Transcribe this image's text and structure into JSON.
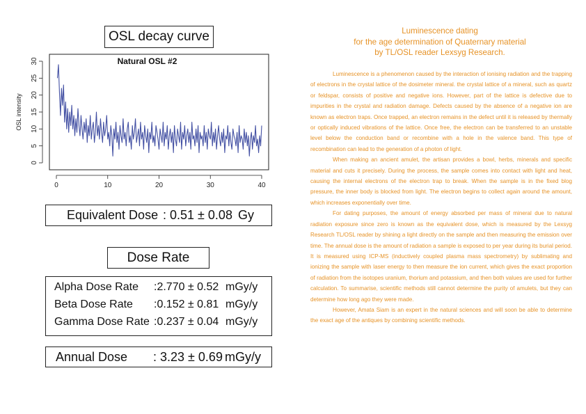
{
  "osl_title": "OSL decay curve",
  "chart_data": {
    "type": "line",
    "title": "Natural OSL #2",
    "xlabel": "",
    "ylabel": "OSL intensity",
    "xlim": [
      0,
      40
    ],
    "ylim": [
      0,
      30
    ],
    "x_ticks": [
      "0",
      "10",
      "20",
      "30",
      "40"
    ],
    "y_ticks": [
      "0",
      "5",
      "10",
      "15",
      "20",
      "25",
      "30"
    ],
    "grid": false,
    "color": "#4350a3",
    "series": [
      {
        "x": [
          0.2,
          0.4,
          0.6,
          0.8,
          1.0,
          1.2,
          1.4,
          1.6,
          1.8,
          2.0,
          2.2,
          2.4,
          2.6,
          2.8,
          3.0,
          3.2,
          3.4,
          3.6,
          3.8,
          4.0,
          4.2,
          4.4,
          4.6,
          4.8,
          5.0,
          5.2,
          5.4,
          5.6,
          5.8,
          6.0,
          6.2,
          6.4,
          6.6,
          6.8,
          7.0,
          7.2,
          7.4,
          7.6,
          7.8,
          8.0,
          8.2,
          8.4,
          8.6,
          8.8,
          9.0,
          9.2,
          9.4,
          9.6,
          9.8,
          10.0,
          10.2,
          10.4,
          10.6,
          10.8,
          11.0,
          11.2,
          11.4,
          11.6,
          11.8,
          12.0,
          12.2,
          12.4,
          12.6,
          12.8,
          13.0,
          13.2,
          13.4,
          13.6,
          13.8,
          14.0,
          14.2,
          14.4,
          14.6,
          14.8,
          15.0,
          15.2,
          15.4,
          15.6,
          15.8,
          16.0,
          16.2,
          16.4,
          16.6,
          16.8,
          17.0,
          17.2,
          17.4,
          17.6,
          17.8,
          18.0,
          18.2,
          18.4,
          18.6,
          18.8,
          19.0,
          19.2,
          19.4,
          19.6,
          19.8,
          20.0,
          20.2,
          20.4,
          20.6,
          20.8,
          21.0,
          21.2,
          21.4,
          21.6,
          21.8,
          22.0,
          22.2,
          22.4,
          22.6,
          22.8,
          23.0,
          23.2,
          23.4,
          23.6,
          23.8,
          24.0,
          24.2,
          24.4,
          24.6,
          24.8,
          25.0,
          25.2,
          25.4,
          25.6,
          25.8,
          26.0,
          26.2,
          26.4,
          26.6,
          26.8,
          27.0,
          27.2,
          27.4,
          27.6,
          27.8,
          28.0,
          28.2,
          28.4,
          28.6,
          28.8,
          29.0,
          29.2,
          29.4,
          29.6,
          29.8,
          30.0,
          30.2,
          30.4,
          30.6,
          30.8,
          31.0,
          31.2,
          31.4,
          31.6,
          31.8,
          32.0,
          32.2,
          32.4,
          32.6,
          32.8,
          33.0,
          33.2,
          33.4,
          33.6,
          33.8,
          34.0,
          34.2,
          34.4,
          34.6,
          34.8,
          35.0,
          35.2,
          35.4,
          35.6,
          35.8,
          36.0,
          36.2,
          36.4,
          36.6,
          36.8,
          37.0,
          37.2,
          37.4,
          37.6,
          37.8,
          38.0,
          38.2,
          38.4,
          38.6,
          38.8,
          39.0,
          39.2,
          39.4,
          39.6,
          39.8,
          40.0
        ],
        "y": [
          25,
          29,
          21,
          14,
          22,
          17,
          23,
          12,
          18,
          10,
          16,
          9,
          15,
          11,
          17,
          10,
          14,
          8,
          13,
          9,
          16,
          11,
          8,
          14,
          10,
          7,
          12,
          9,
          13,
          6,
          11,
          8,
          14,
          7,
          10,
          12,
          6,
          9,
          15,
          8,
          11,
          7,
          13,
          9,
          6,
          12,
          8,
          10,
          14,
          7,
          9,
          5,
          11,
          8,
          2,
          10,
          7,
          12,
          6,
          9,
          4,
          11,
          8,
          6,
          13,
          7,
          9,
          5,
          10,
          12,
          6,
          8,
          4,
          11,
          7,
          9,
          13,
          6,
          8,
          10,
          5,
          12,
          7,
          9,
          4,
          11,
          8,
          6,
          10,
          3,
          9,
          7,
          12,
          6,
          8,
          5,
          11,
          9,
          7,
          4,
          10,
          8,
          6,
          12,
          5,
          9,
          7,
          11,
          4,
          8,
          10,
          6,
          9,
          3,
          11,
          7,
          5,
          10,
          8,
          6,
          12,
          4,
          9,
          7,
          11,
          5,
          8,
          10,
          6,
          9,
          4,
          12,
          7,
          8,
          5,
          10,
          6,
          11,
          3,
          9,
          7,
          8,
          5,
          11,
          6,
          9,
          4,
          10,
          8,
          7,
          12,
          5,
          9,
          6,
          10,
          4,
          8,
          11,
          7,
          5,
          9,
          6,
          10,
          3,
          8,
          7,
          11,
          5,
          9,
          6,
          4,
          10,
          8,
          7,
          5,
          9,
          3,
          11,
          6,
          8,
          7,
          4,
          10,
          6,
          9,
          5,
          8,
          2,
          7,
          9,
          4,
          8,
          6,
          11,
          5,
          7,
          3,
          8,
          5,
          11
        ]
      }
    ]
  },
  "equivalent_dose": {
    "label": "Equivalent Dose",
    "value": ": 0.51 ± 0.08",
    "unit": "Gy"
  },
  "dose_rate_title": "Dose Rate",
  "dose_rates": [
    {
      "label": "Alpha Dose Rate",
      "value": ":2.770 ± 0.52",
      "unit": "mGy/y"
    },
    {
      "label": "Beta Dose Rate",
      "value": ":0.152 ± 0.81",
      "unit": "mGy/y"
    },
    {
      "label": "Gamma Dose Rate",
      "value": ":0.237 ± 0.04",
      "unit": "mGy/y"
    }
  ],
  "annual_dose": {
    "label": "Annual Dose",
    "value": ": 3.23 ± 0.69",
    "unit": "mGy/y"
  },
  "article": {
    "title_lines": [
      "Luminescence dating",
      "for the age determination of Quaternary material",
      "by TL/OSL reader Lexsyg Research."
    ],
    "paragraphs": [
      "Luminescence is a phenomenon caused by the interaction of ionising radiation and the trapping of electrons in the crystal lattice of the dosimeter mineral. the crystal lattice of a mineral, such as quartz or feldspar, consists of positive and negative ions. However, part of the lattice is defective due to impurities in the crystal and radiation damage. Defects caused by the absence of a negative ion are known as electron traps. Once trapped, an electron remains in the defect until it is released by thermally or optically induced vibrations of the lattice. Once free, the electron can be transferred to an unstable level below the conduction band or recombine with a hole in the valence band. This type of recombination can lead to the generation of a photon of light.",
      "When making an ancient amulet, the artisan provides a bowl, herbs, minerals and specific material and cuts it precisely. During the process, the sample comes into contact with light and heat, causing the internal electrons of the electron trap to break. When the sample is in the fixed blog pressure, the inner body is blocked from light. The electron begins to collect again around the amount, which increases exponentially over time.",
      "For dating purposes, the amount of energy absorbed per mass of mineral due to natural radiation exposure since zero is known as the equivalent dose, which is measured by the Lexsyg Research TL/OSL reader by shining a light directly on the sample and then measuring the emission over time. The annual dose is the amount of radiation a sample is exposed to per year during its burial period. It is measured using ICP-MS (inductively coupled plasma mass spectrometry) by sublimating and ionizing the sample with laser energy to then measure the ion current, which gives the exact proportion of radiation from the isotopes uranium, thorium and potassium, and then both values are used for further calculation. To summarise, scientific methods still cannot determine the purity of amulets, but they can determine how long ago they were made.",
      "However, Amata Siam is an expert in the natural sciences and will soon be able to determine the exact age of the antiques by combining scientific methods."
    ]
  }
}
